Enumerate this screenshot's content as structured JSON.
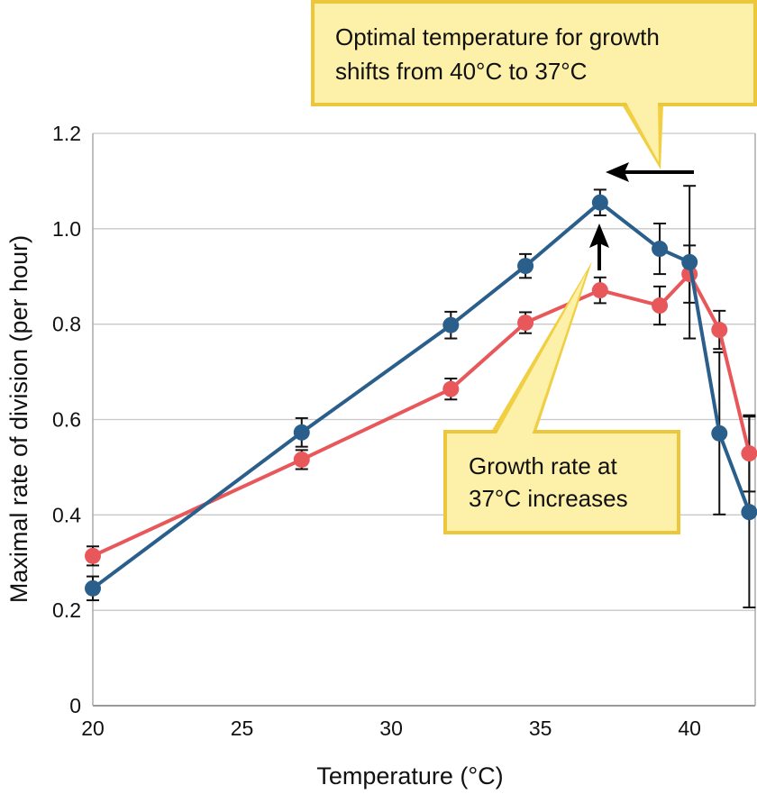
{
  "chart_data": {
    "type": "line",
    "xlabel": "Temperature (°C)",
    "ylabel": "Maximal rate of division (per hour)",
    "xlim": [
      20,
      42.2
    ],
    "ylim": [
      0,
      1.2
    ],
    "xticks": [
      "20",
      "25",
      "30",
      "35",
      "40"
    ],
    "yticks": [
      "0",
      "0.2",
      "0.4",
      "0.6",
      "0.8",
      "1.0",
      "1.2"
    ],
    "grid": "horizontal",
    "x": [
      20,
      27,
      32,
      34.5,
      37,
      39,
      40,
      41,
      42
    ],
    "series": [
      {
        "color": "#2a5f8c",
        "values": [
          0.246,
          0.573,
          0.798,
          0.922,
          1.055,
          0.958,
          0.93,
          0.571,
          0.406
        ],
        "errors": [
          0.025,
          0.03,
          0.028,
          0.025,
          0.027,
          0.053,
          0.16,
          0.17,
          0.2
        ]
      },
      {
        "color": "#e8575a",
        "values": [
          0.314,
          0.516,
          0.664,
          0.803,
          0.871,
          0.839,
          0.905,
          0.788,
          0.529
        ],
        "errors": [
          0.02,
          0.02,
          0.022,
          0.022,
          0.027,
          0.04,
          0.06,
          0.04,
          0.08
        ]
      }
    ],
    "annotations": [
      {
        "lines": [
          "Optimal temperature for growth",
          "shifts from 40°C to 37°C"
        ]
      },
      {
        "lines": [
          "Growth rate at",
          "37°C increases"
        ]
      }
    ]
  }
}
